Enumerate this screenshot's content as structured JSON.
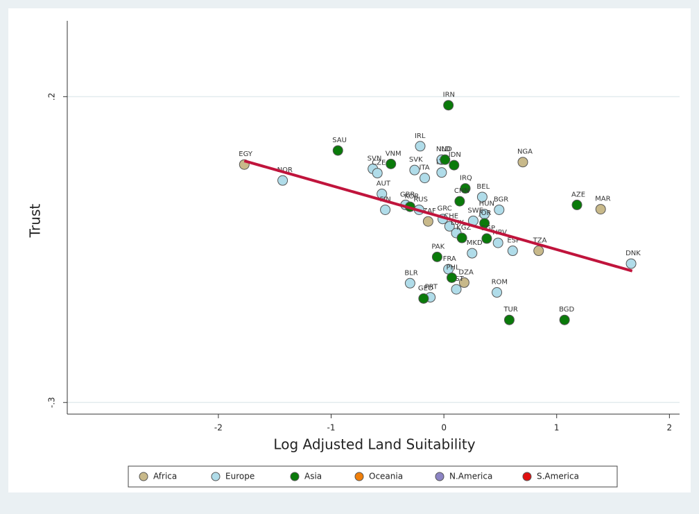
{
  "chart_data": {
    "type": "scatter",
    "xlabel": "Log Adjusted Land Suitability",
    "ylabel": "Trust",
    "xlim": [
      -3.34,
      2.09
    ],
    "ylim": [
      -0.319,
      0.324
    ],
    "xticks": [
      -2,
      -1,
      0,
      1,
      2
    ],
    "yticks": [
      {
        "value": 0.2,
        "label": ".2"
      },
      {
        "value": -0.3,
        "label": "-.3"
      }
    ],
    "grid": true,
    "legend": "bottom",
    "series": [
      {
        "name": "Africa",
        "color": "#c8b98a",
        "labels": [
          "EGY",
          "NGA",
          "ZAF",
          "TZA",
          "MAR",
          "DZA"
        ],
        "x": [
          -1.77,
          0.7,
          -0.14,
          0.84,
          1.39,
          0.18
        ],
        "values": [
          0.089,
          0.093,
          -0.004,
          -0.052,
          0.016,
          -0.104
        ]
      },
      {
        "name": "Europe",
        "color": "#b0dce9",
        "labels": [
          "NOR",
          "SVN",
          "CZE",
          "IRL",
          "SVK",
          "ITA",
          "NLD",
          "LTU",
          "BEL",
          "BGR",
          "HUN",
          "AUT",
          "GBR",
          "FIN",
          "RUS",
          "GRC",
          "CHE",
          "SWE",
          "LUX",
          "HRV",
          "ESP",
          "MKD",
          "DNK",
          "FRA",
          "EST",
          "BLR",
          "PRT",
          "ROM"
        ],
        "x": [
          -1.43,
          -0.63,
          -0.59,
          -0.21,
          -0.26,
          -0.17,
          -0.02,
          -0.02,
          0.34,
          0.49,
          0.36,
          -0.55,
          -0.34,
          -0.52,
          -0.22,
          -0.01,
          0.05,
          0.26,
          0.11,
          0.48,
          0.61,
          0.25,
          1.66,
          0.04,
          0.11,
          -0.3,
          -0.12,
          0.47
        ],
        "values": [
          0.063,
          0.082,
          0.075,
          0.119,
          0.08,
          0.067,
          0.097,
          0.076,
          0.036,
          0.015,
          0.008,
          0.041,
          0.023,
          0.015,
          0.015,
          0.0,
          -0.012,
          -0.003,
          -0.023,
          -0.039,
          -0.052,
          -0.056,
          -0.073,
          -0.082,
          -0.115,
          -0.105,
          -0.128,
          -0.12
        ]
      },
      {
        "name": "Asia",
        "color": "#0a7a0a",
        "labels": [
          "SAU",
          "VNM",
          "IRN",
          "IND",
          "IDN",
          "IRQ",
          "CHN",
          "KOR",
          "JOR",
          "KGZ",
          "SGP",
          "AZE",
          "PAK",
          "PHL",
          "GEO",
          "TUR",
          "BGD"
        ],
        "x": [
          -0.94,
          -0.47,
          0.04,
          0.01,
          0.09,
          0.19,
          0.14,
          -0.3,
          0.36,
          0.16,
          0.38,
          1.18,
          -0.06,
          0.07,
          -0.18,
          0.58,
          1.07
        ],
        "values": [
          0.112,
          0.09,
          0.186,
          0.097,
          0.088,
          0.05,
          0.029,
          0.02,
          -0.007,
          -0.031,
          -0.032,
          0.023,
          -0.062,
          -0.096,
          -0.13,
          -0.165,
          -0.165
        ]
      },
      {
        "name": "Oceania",
        "color": "#f07f0a",
        "labels": [],
        "x": [],
        "values": []
      },
      {
        "name": "N.America",
        "color": "#8c84c4",
        "labels": [],
        "x": [],
        "values": []
      },
      {
        "name": "S.America",
        "color": "#e01010",
        "labels": [],
        "x": [],
        "values": []
      }
    ],
    "fit_line": {
      "color": "#c0143c",
      "x": [
        -1.77,
        1.67
      ],
      "values": [
        0.095,
        -0.085
      ]
    }
  }
}
